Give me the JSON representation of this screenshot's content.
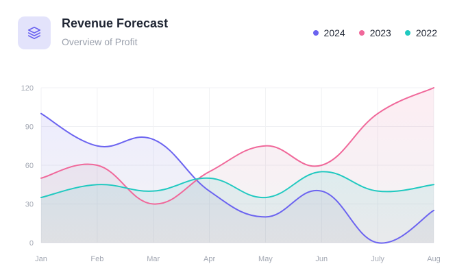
{
  "header": {
    "title": "Revenue Forecast",
    "subtitle": "Overview of Profit",
    "icon": "layers-icon",
    "icon_color": "#6b63f0"
  },
  "legend": {
    "items": [
      {
        "label": "2024",
        "color": "#6b63f0"
      },
      {
        "label": "2023",
        "color": "#f0689a"
      },
      {
        "label": "2022",
        "color": "#20c9c0"
      }
    ]
  },
  "chart_data": {
    "type": "line",
    "title": "Revenue Forecast",
    "subtitle": "Overview of Profit",
    "categories": [
      "Jan",
      "Feb",
      "Mar",
      "Apr",
      "May",
      "Jun",
      "July",
      "Aug"
    ],
    "ylim": [
      0,
      120
    ],
    "yticks": [
      "0",
      "30",
      "60",
      "90",
      "120"
    ],
    "grid": true,
    "legend_position": "top-right",
    "series": [
      {
        "name": "2024",
        "color": "#6b63f0",
        "values": [
          100,
          75,
          80,
          40,
          20,
          40,
          0,
          25
        ]
      },
      {
        "name": "2023",
        "color": "#f0689a",
        "values": [
          50,
          60,
          30,
          55,
          75,
          60,
          100,
          120
        ]
      },
      {
        "name": "2022",
        "color": "#20c9c0",
        "values": [
          35,
          45,
          40,
          50,
          35,
          55,
          40,
          45
        ]
      }
    ]
  }
}
